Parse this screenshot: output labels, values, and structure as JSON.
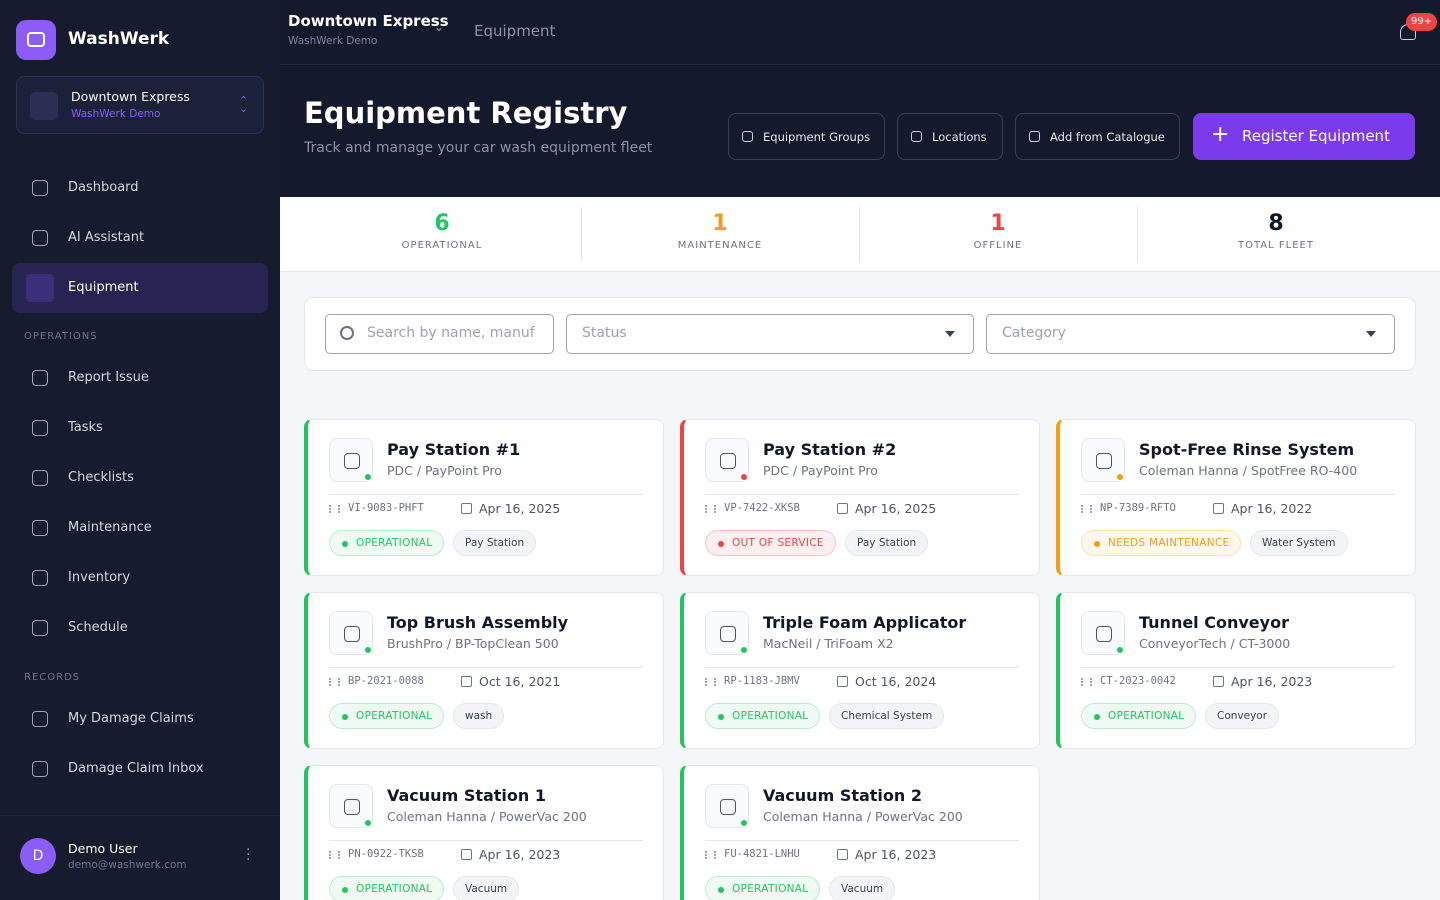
{
  "sidebar": {
    "brand": "WashWerk",
    "location": {
      "name": "Downtown Express",
      "org": "WashWerk Demo"
    },
    "nav": [
      {
        "label": "Dashboard",
        "active": false
      },
      {
        "label": "AI Assistant",
        "active": false
      },
      {
        "label": "Equipment",
        "active": true
      }
    ],
    "sections": [
      {
        "title": "OPERATIONS",
        "items": [
          "Report Issue",
          "Tasks",
          "Checklists",
          "Maintenance",
          "Inventory",
          "Schedule"
        ]
      },
      {
        "title": "RECORDS",
        "items": [
          "My Damage Claims",
          "Damage Claim Inbox"
        ]
      }
    ],
    "user": {
      "initial": "D",
      "name": "Demo User",
      "email": "demo@washwerk.com"
    }
  },
  "topbar": {
    "location": "Downtown Express",
    "org": "WashWerk Demo",
    "breadcrumb": "Equipment",
    "badge": "99+"
  },
  "header": {
    "title": "Equipment Registry",
    "subtitle": "Track and manage your car wash equipment fleet",
    "buttons": [
      "Equipment Groups",
      "Locations",
      "Add from Catalogue"
    ],
    "primary": "Register Equipment"
  },
  "stats": [
    {
      "value": 6,
      "label": "OPERATIONAL",
      "color": "#22c55e"
    },
    {
      "value": 1,
      "label": "MAINTENANCE",
      "color": "#f59e0b"
    },
    {
      "value": 1,
      "label": "OFFLINE",
      "color": "#ef4444"
    },
    {
      "value": 8,
      "label": "TOTAL FLEET",
      "color": "#111827"
    }
  ],
  "filters": {
    "search": "Search by name, manuf",
    "status": "Status",
    "category": "Category"
  },
  "equipment": [
    {
      "name": "Pay Station #1",
      "model": "PDC / PayPoint Pro",
      "serial": "VI-9083-PHFT",
      "date": "Apr 16, 2025",
      "status": "OPERATIONAL",
      "category": "Pay Station",
      "color": "#22c55e"
    },
    {
      "name": "Pay Station #2",
      "model": "PDC / PayPoint Pro",
      "serial": "VP-7422-XKSB",
      "date": "Apr 16, 2025",
      "status": "OUT OF SERVICE",
      "category": "Pay Station",
      "color": "#ef4444"
    },
    {
      "name": "Spot-Free Rinse System",
      "model": "Coleman Hanna / SpotFree RO-400",
      "serial": "NP-7389-RFTO",
      "date": "Apr 16, 2022",
      "status": "NEEDS MAINTENANCE",
      "category": "Water System",
      "color": "#f59e0b"
    },
    {
      "name": "Top Brush Assembly",
      "model": "BrushPro / BP-TopClean 500",
      "serial": "BP-2021-0088",
      "date": "Oct 16, 2021",
      "status": "OPERATIONAL",
      "category": "wash",
      "color": "#22c55e"
    },
    {
      "name": "Triple Foam Applicator",
      "model": "MacNeil / TriFoam X2",
      "serial": "RP-1183-JBMV",
      "date": "Oct 16, 2024",
      "status": "OPERATIONAL",
      "category": "Chemical System",
      "color": "#22c55e"
    },
    {
      "name": "Tunnel Conveyor",
      "model": "ConveyorTech / CT-3000",
      "serial": "CT-2023-0042",
      "date": "Apr 16, 2023",
      "status": "OPERATIONAL",
      "category": "Conveyor",
      "color": "#22c55e"
    },
    {
      "name": "Vacuum Station 1",
      "model": "Coleman Hanna / PowerVac 200",
      "serial": "PN-0922-TKSB",
      "date": "Apr 16, 2023",
      "status": "OPERATIONAL",
      "category": "Vacuum",
      "color": "#22c55e"
    },
    {
      "name": "Vacuum Station 2",
      "model": "Coleman Hanna / PowerVac 200",
      "serial": "FU-4821-LNHU",
      "date": "Apr 16, 2023",
      "status": "OPERATIONAL",
      "category": "Vacuum",
      "color": "#22c55e"
    }
  ]
}
